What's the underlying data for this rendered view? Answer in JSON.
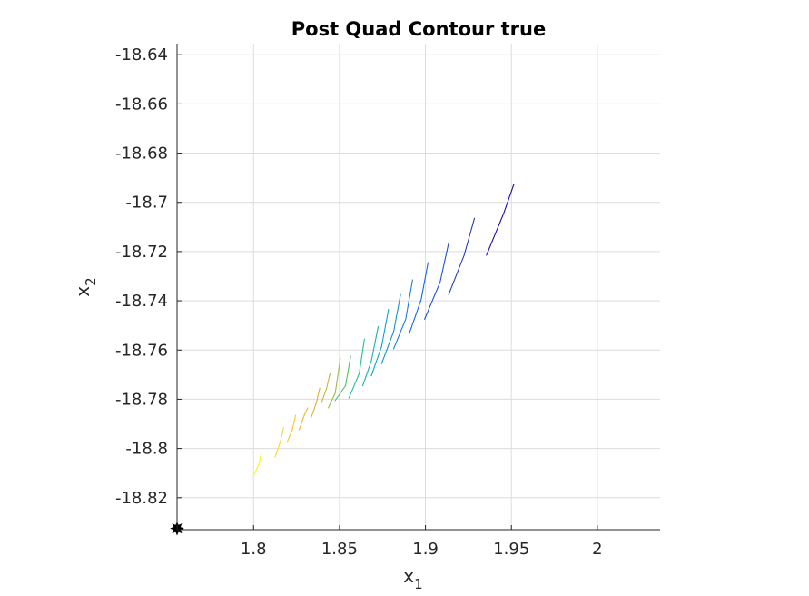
{
  "chart_data": {
    "type": "line",
    "title": "Post Quad Contour true",
    "xlabel": {
      "base": "x",
      "sub": "1"
    },
    "ylabel": {
      "base": "x",
      "sub": "2"
    },
    "xlim": [
      1.7555,
      2.0365
    ],
    "ylim": [
      -18.833,
      -18.6355
    ],
    "xticks": [
      1.8,
      1.85,
      1.9,
      1.95,
      2.0
    ],
    "xtick_labels": [
      "1.8",
      "1.85",
      "1.9",
      "1.95",
      "2"
    ],
    "yticks": [
      -18.64,
      -18.66,
      -18.68,
      -18.7,
      -18.72,
      -18.74,
      -18.76,
      -18.78,
      -18.8,
      -18.82
    ],
    "ytick_labels": [
      "-18.64",
      "-18.66",
      "-18.68",
      "-18.7",
      "-18.72",
      "-18.74",
      "-18.76",
      "-18.78",
      "-18.8",
      "-18.82"
    ],
    "grid": true,
    "colormap": "parula",
    "series": [
      {
        "color": "#1a0aa8",
        "points": [
          [
            1.9355,
            -18.7215
          ],
          [
            1.9455,
            -18.7045
          ],
          [
            1.9515,
            -18.6925
          ]
        ]
      },
      {
        "color": "#283db8",
        "points": [
          [
            1.9135,
            -18.7375
          ],
          [
            1.9225,
            -18.7215
          ],
          [
            1.9285,
            -18.7065
          ]
        ]
      },
      {
        "color": "#1b4fe0",
        "points": [
          [
            1.8995,
            -18.7475
          ],
          [
            1.9085,
            -18.7325
          ],
          [
            1.9135,
            -18.7165
          ]
        ]
      },
      {
        "color": "#1468e8",
        "points": [
          [
            1.8905,
            -18.7535
          ],
          [
            1.8975,
            -18.7395
          ],
          [
            1.9015,
            -18.7245
          ]
        ]
      },
      {
        "color": "#1a7ed8",
        "points": [
          [
            1.8815,
            -18.7595
          ],
          [
            1.8885,
            -18.7475
          ],
          [
            1.8925,
            -18.7315
          ]
        ]
      },
      {
        "color": "#1390d1",
        "points": [
          [
            1.8745,
            -18.7655
          ],
          [
            1.8815,
            -18.7525
          ],
          [
            1.8855,
            -18.7375
          ]
        ]
      },
      {
        "color": "#0ea3c9",
        "points": [
          [
            1.8685,
            -18.7705
          ],
          [
            1.8745,
            -18.7585
          ],
          [
            1.8785,
            -18.7435
          ]
        ]
      },
      {
        "color": "#14b3ac",
        "points": [
          [
            1.8635,
            -18.7745
          ],
          [
            1.8685,
            -18.7645
          ],
          [
            1.8725,
            -18.7505
          ]
        ]
      },
      {
        "color": "#26bc93",
        "points": [
          [
            1.8555,
            -18.7795
          ],
          [
            1.8615,
            -18.7695
          ],
          [
            1.8645,
            -18.7555
          ]
        ]
      },
      {
        "color": "#53be72",
        "points": [
          [
            1.8475,
            -18.7805
          ],
          [
            1.8535,
            -18.7745
          ],
          [
            1.8565,
            -18.7625
          ]
        ]
      },
      {
        "color": "#9abb4b",
        "points": [
          [
            1.8435,
            -18.7835
          ],
          [
            1.8475,
            -18.7775
          ],
          [
            1.8505,
            -18.7635
          ]
        ]
      },
      {
        "color": "#c9b337",
        "points": [
          [
            1.8395,
            -18.7815
          ],
          [
            1.8425,
            -18.7755
          ],
          [
            1.8445,
            -18.7695
          ]
        ]
      },
      {
        "color": "#e0ad2f",
        "points": [
          [
            1.8335,
            -18.7875
          ],
          [
            1.8365,
            -18.7815
          ],
          [
            1.8385,
            -18.7755
          ]
        ]
      },
      {
        "color": "#f0b52c",
        "points": [
          [
            1.8265,
            -18.7925
          ],
          [
            1.8295,
            -18.7865
          ],
          [
            1.8315,
            -18.7835
          ]
        ]
      },
      {
        "color": "#f6c62a",
        "points": [
          [
            1.8195,
            -18.7975
          ],
          [
            1.8225,
            -18.7925
          ],
          [
            1.8245,
            -18.7865
          ]
        ]
      },
      {
        "color": "#f8d92a",
        "points": [
          [
            1.8125,
            -18.8035
          ],
          [
            1.8155,
            -18.7975
          ],
          [
            1.8175,
            -18.7915
          ]
        ]
      },
      {
        "color": "#f9f31e",
        "points": [
          [
            1.8005,
            -18.8105
          ],
          [
            1.8035,
            -18.8055
          ],
          [
            1.8045,
            -18.8015
          ]
        ]
      }
    ],
    "marker": {
      "x": 1.7555,
      "y": -18.8325,
      "color": "#000000",
      "shape": "star"
    }
  }
}
